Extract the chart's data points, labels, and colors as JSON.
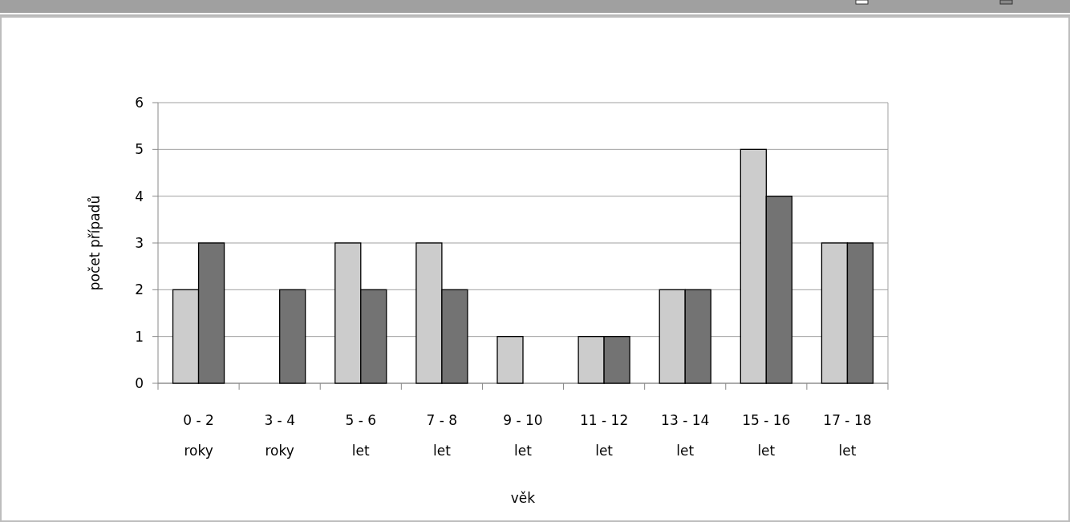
{
  "chart_data": {
    "type": "bar",
    "xlabel": "věk",
    "ylabel": "počet případů",
    "categories": [
      "0 - 2\nroky",
      "3 - 4\nroky",
      "5 - 6\nlet",
      "7 - 8\nlet",
      "9 - 10\nlet",
      "11 - 12\nlet",
      "13 - 14\nlet",
      "15 - 16\nlet",
      "17 - 18\nlet"
    ],
    "series": [
      {
        "color": "#cccccc",
        "values": [
          2,
          0,
          3,
          3,
          1,
          1,
          2,
          5,
          3
        ]
      },
      {
        "color": "#737373",
        "values": [
          3,
          2,
          2,
          2,
          0,
          1,
          2,
          4,
          3
        ]
      }
    ],
    "ylim": [
      0,
      6
    ],
    "yticks": [
      0,
      1,
      2,
      3,
      4,
      5,
      6
    ],
    "grid": "y"
  }
}
